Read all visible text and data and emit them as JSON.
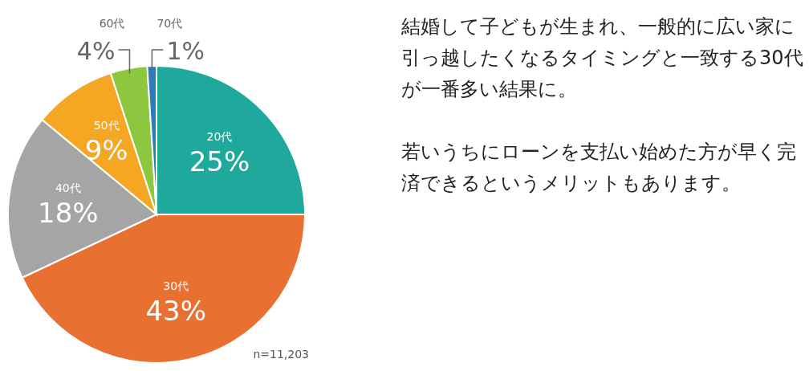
{
  "chart_data": {
    "type": "pie",
    "categories": [
      "20代",
      "30代",
      "40代",
      "50代",
      "60代",
      "70代"
    ],
    "values": [
      25,
      43,
      18,
      9,
      4,
      1
    ],
    "value_labels": [
      "25%",
      "43%",
      "18%",
      "9%",
      "4%",
      "1%"
    ],
    "colors": [
      "#1fa99c",
      "#e87031",
      "#a5a5a5",
      "#f5a623",
      "#8dc63f",
      "#2b7bbf"
    ],
    "annotations": [
      "n=11,203",
      "結婚して子どもが生まれ、一般的に広い家に引っ越したくなるタイミングと一致する30代が一番多い結果に。",
      "若いうちにローンを支払い始めた方が早く完済できるというメリットもあります。"
    ]
  }
}
